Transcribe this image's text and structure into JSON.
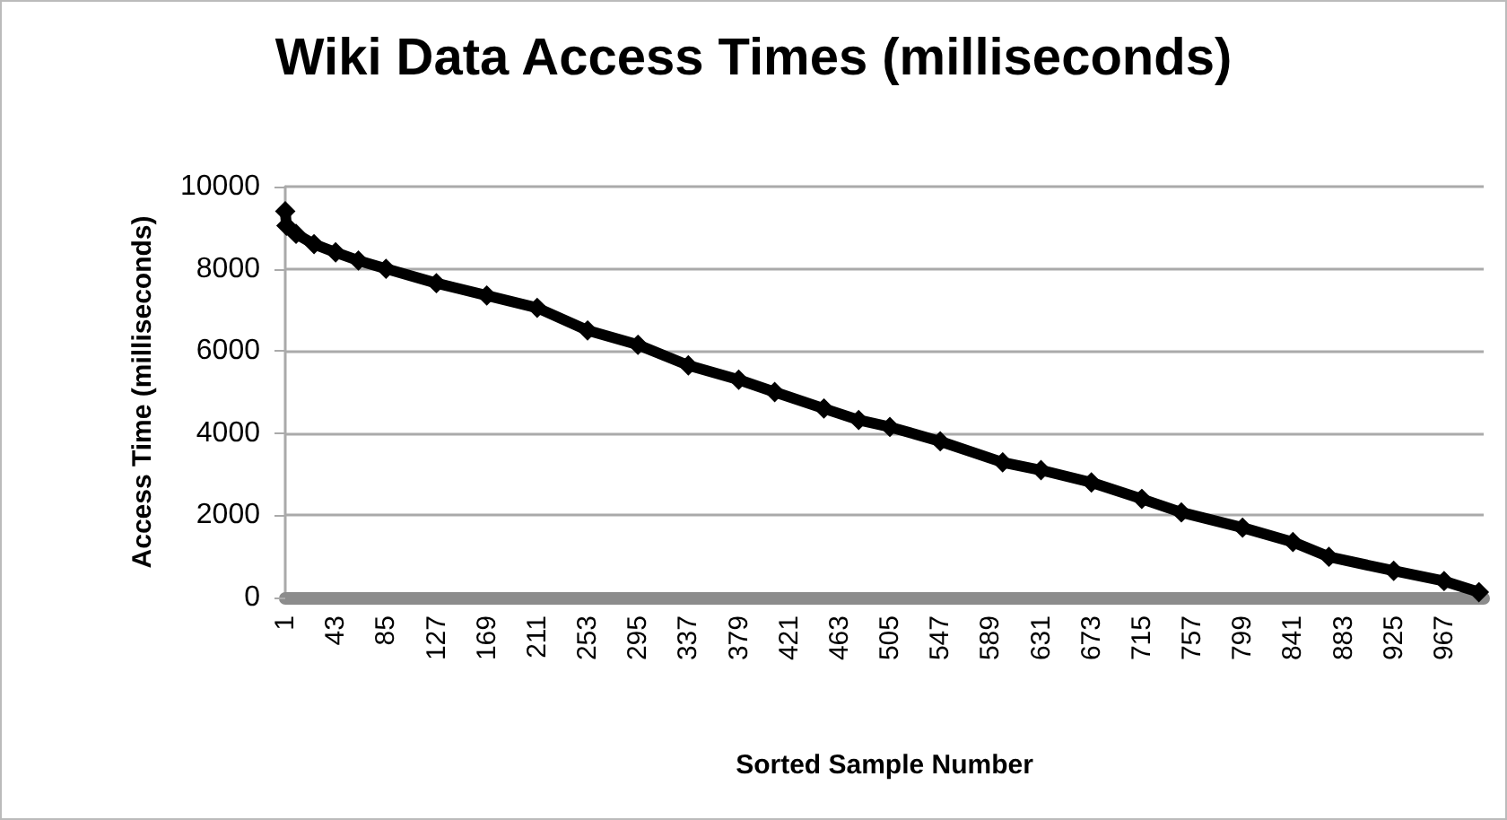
{
  "chart_data": {
    "type": "line",
    "title": "Wiki Data Access Times (milliseconds)",
    "xlabel": "Sorted Sample Number",
    "ylabel": "Access Time (milliseconds)",
    "x": [
      1,
      2,
      10,
      25,
      43,
      62,
      85,
      127,
      169,
      211,
      253,
      295,
      337,
      379,
      409,
      450,
      479,
      505,
      547,
      599,
      631,
      673,
      715,
      748,
      799,
      841,
      871,
      925,
      967,
      996
    ],
    "series": [
      {
        "color": "#000000",
        "values": [
          9400,
          9050,
          8850,
          8600,
          8400,
          8200,
          8000,
          7650,
          7350,
          7050,
          6500,
          6150,
          5650,
          5300,
          5000,
          4600,
          4320,
          4150,
          3800,
          3290,
          3100,
          2800,
          2400,
          2070,
          1700,
          1350,
          990,
          650,
          400,
          130
        ]
      }
    ],
    "xlim": [
      1,
      1000
    ],
    "xticks": [
      1,
      43,
      85,
      127,
      169,
      211,
      253,
      295,
      337,
      379,
      421,
      463,
      505,
      547,
      589,
      631,
      673,
      715,
      757,
      799,
      841,
      883,
      925,
      967
    ],
    "ylim": [
      0,
      10000
    ],
    "yticks": [
      0,
      2000,
      4000,
      6000,
      8000,
      10000
    ],
    "grid": "y",
    "marker": "diamond",
    "line_style": "solid"
  }
}
